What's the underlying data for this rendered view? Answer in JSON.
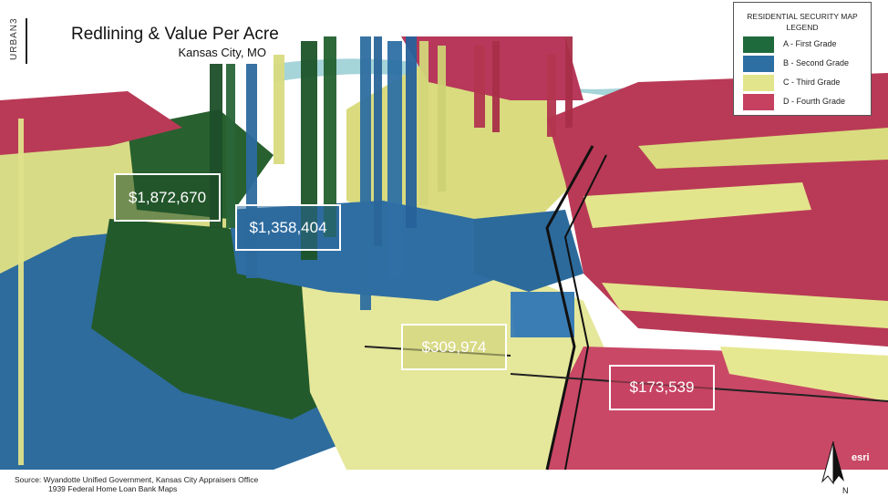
{
  "header": {
    "brand": "URBAN3",
    "title": "Redlining & Value Per Acre",
    "subtitle": "Kansas City, MO"
  },
  "legend": {
    "title": "RESIDENTIAL SECURITY MAP",
    "subtitle": "LEGEND",
    "items": [
      {
        "label": "A - First Grade",
        "color": "#1f6a3c"
      },
      {
        "label": "B - Second Grade",
        "color": "#2d6fa3"
      },
      {
        "label": "C - Third Grade",
        "color": "#e3e58c"
      },
      {
        "label": "D - Fourth Grade",
        "color": "#c64160"
      }
    ]
  },
  "values": [
    {
      "label": "$1,872,670",
      "grade": "A"
    },
    {
      "label": "$1,358,404",
      "grade": "B"
    },
    {
      "label": "$309,974",
      "grade": "C"
    },
    {
      "label": "$173,539",
      "grade": "D"
    }
  ],
  "source": {
    "line1": "Source: Wyandotte Unified Government, Kansas City Appraisers Office",
    "line2": "1939 Federal Home Loan Bank Maps"
  },
  "attribution": "esri",
  "compass_icon": "north-arrow-icon"
}
